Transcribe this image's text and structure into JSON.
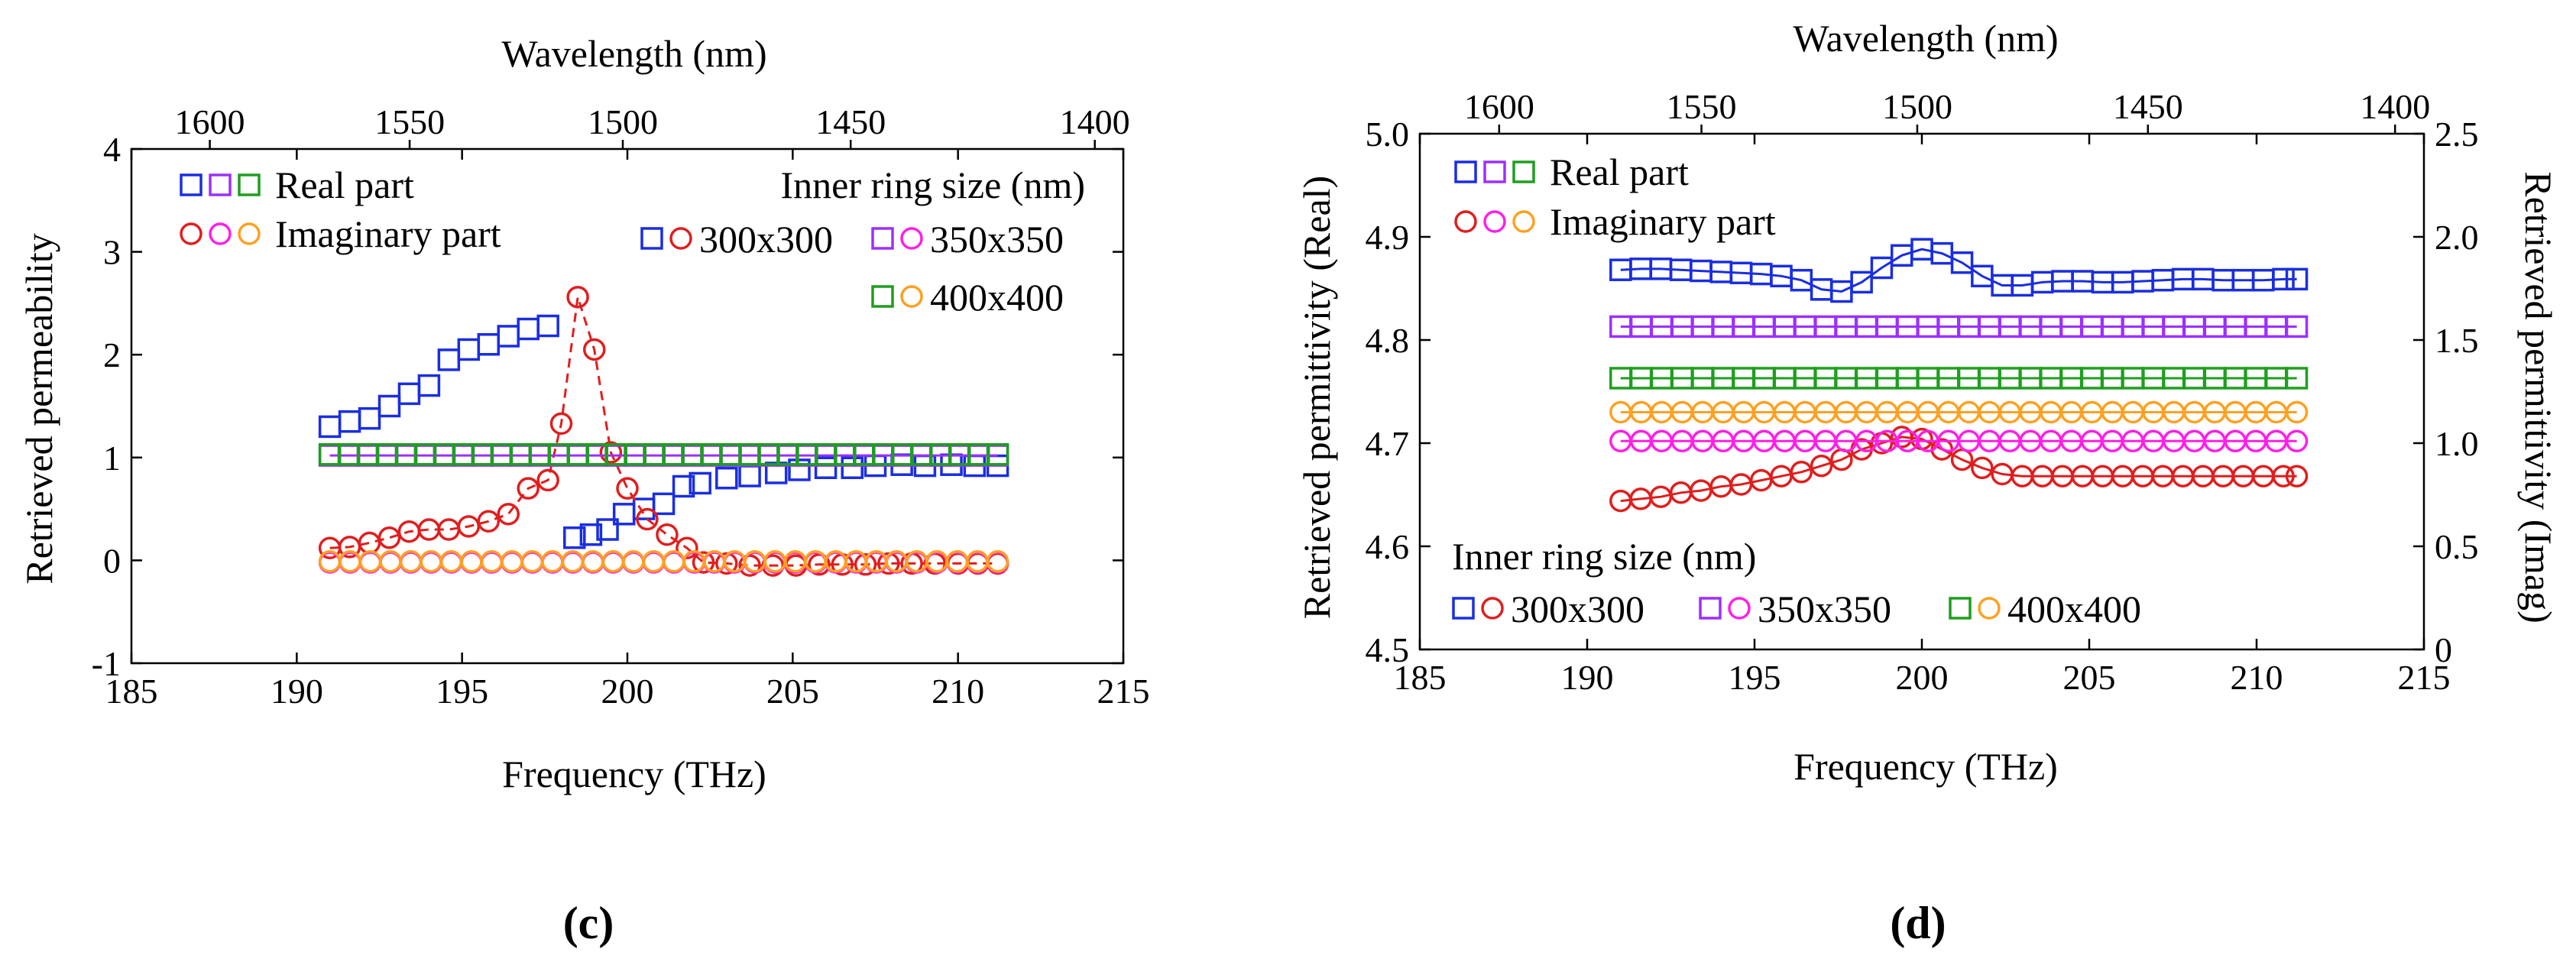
{
  "figure": {
    "colors": {
      "s300": "#1a2ee0",
      "s350": "#9b30ff",
      "s400": "#1f9e1f",
      "c300": "#e01e1e",
      "c350": "#ff1fe6",
      "c400": "#ffa020"
    }
  },
  "chart_data": [
    {
      "panel": "(c)",
      "type": "scatter",
      "xlabel": "Frequency (THz)",
      "ylabel": "Retrieved permeability",
      "x2label": "Wavelength (nm)",
      "xlim": [
        185,
        215
      ],
      "ylim": [
        -1,
        4
      ],
      "xticks": [
        "185",
        "190",
        "195",
        "200",
        "205",
        "210",
        "215"
      ],
      "yticks": [
        "-1",
        "0",
        "1",
        "2",
        "3",
        "4"
      ],
      "x2ticks": [
        "1600",
        "1550",
        "1500",
        "1450",
        "1400"
      ],
      "legend": {
        "real": "Real part",
        "imag": "Imaginary part",
        "size_title": "Inner ring size (nm)",
        "sizes": [
          "300x300",
          "350x350",
          "400x400"
        ]
      },
      "series": [
        {
          "name": "300x300 Real",
          "marker": "square",
          "color": "#1a2ee0",
          "x": [
            191.0,
            191.6,
            192.2,
            192.8,
            193.4,
            194.0,
            194.6,
            195.2,
            195.8,
            196.4,
            197.0,
            197.6,
            198.4,
            198.9,
            199.4,
            199.9,
            200.5,
            201.1,
            201.7,
            202.2,
            203.0,
            203.7,
            204.5,
            205.2,
            206.0,
            206.8,
            207.5,
            208.3,
            209.0,
            209.8,
            210.5,
            211.2
          ],
          "y": [
            1.3,
            1.35,
            1.38,
            1.5,
            1.62,
            1.7,
            1.95,
            2.05,
            2.1,
            2.18,
            2.25,
            2.28,
            0.22,
            0.25,
            0.3,
            0.45,
            0.5,
            0.55,
            0.72,
            0.75,
            0.8,
            0.82,
            0.85,
            0.88,
            0.9,
            0.9,
            0.92,
            0.93,
            0.92,
            0.93,
            0.92,
            0.92
          ]
        },
        {
          "name": "300x300 Imag",
          "marker": "circle",
          "color": "#e01e1e",
          "line": "dashed",
          "x": [
            191.0,
            191.6,
            192.2,
            192.8,
            193.4,
            194.0,
            194.6,
            195.2,
            195.8,
            196.4,
            197.0,
            197.6,
            198.0,
            198.5,
            199.0,
            199.5,
            200.0,
            200.6,
            201.2,
            201.8,
            202.3,
            203.0,
            203.7,
            204.4,
            205.1,
            205.8,
            206.5,
            207.2,
            207.9,
            208.6,
            209.3,
            210.0,
            210.6,
            211.2
          ],
          "y": [
            0.12,
            0.13,
            0.17,
            0.22,
            0.28,
            0.3,
            0.3,
            0.33,
            0.38,
            0.45,
            0.7,
            0.78,
            1.33,
            2.56,
            2.05,
            1.05,
            0.7,
            0.4,
            0.25,
            0.12,
            -0.02,
            -0.03,
            -0.05,
            -0.05,
            -0.05,
            -0.04,
            -0.04,
            -0.04,
            -0.03,
            -0.03,
            -0.03,
            -0.03,
            -0.03,
            -0.03
          ]
        },
        {
          "name": "350x350 Real",
          "marker": "square",
          "color": "#9b30ff",
          "line": "solid",
          "x_range": [
            191.0,
            211.2
          ],
          "n": 36,
          "y_const": 1.02
        },
        {
          "name": "350x350 Imag",
          "marker": "circle",
          "color": "#ff1fe6",
          "x_range": [
            191.0,
            211.2
          ],
          "n": 34,
          "y_const": -0.02
        },
        {
          "name": "400x400 Real",
          "marker": "square",
          "color": "#1f9e1f",
          "x_range": [
            191.0,
            211.2
          ],
          "n": 36,
          "y_const": 1.03
        },
        {
          "name": "400x400 Imag",
          "marker": "circle",
          "color": "#ffa020",
          "x_range": [
            191.0,
            211.2
          ],
          "n": 34,
          "y_const": -0.01
        }
      ]
    },
    {
      "panel": "(d)",
      "type": "scatter",
      "xlabel": "Frequency (THz)",
      "ylabel": "Retrieved permittivity (Real)",
      "y2label": "Retrieved permittivity (Imag)",
      "x2label": "Wavelength (nm)",
      "xlim": [
        185,
        215
      ],
      "ylim": [
        4.5,
        5.0
      ],
      "y2lim": [
        0,
        2.5
      ],
      "xticks": [
        "185",
        "190",
        "195",
        "200",
        "205",
        "210",
        "215"
      ],
      "yticks": [
        "4.5",
        "4.6",
        "4.7",
        "4.8",
        "4.9",
        "5.0"
      ],
      "y2ticks": [
        "0",
        "0.5",
        "1.0",
        "1.5",
        "2.0",
        "2.5"
      ],
      "x2ticks": [
        "1600",
        "1550",
        "1500",
        "1450",
        "1400"
      ],
      "legend": {
        "real": "Real part",
        "imag": "Imaginary part",
        "size_title": "Inner ring size (nm)",
        "sizes": [
          "300x300",
          "350x350",
          "400x400"
        ]
      },
      "series": [
        {
          "name": "300x300 Real",
          "marker": "square",
          "color": "#1a2ee0",
          "line": "solid",
          "x": [
            191.0,
            191.6,
            192.2,
            192.8,
            193.4,
            194.0,
            194.6,
            195.2,
            195.8,
            196.4,
            197.0,
            197.6,
            198.2,
            198.8,
            199.4,
            200.0,
            200.6,
            201.2,
            201.8,
            202.4,
            203.0,
            203.6,
            204.2,
            204.8,
            205.4,
            206.0,
            206.6,
            207.2,
            207.8,
            208.4,
            209.0,
            209.6,
            210.2,
            210.8,
            211.2
          ],
          "y": [
            4.868,
            4.869,
            4.869,
            4.868,
            4.867,
            4.866,
            4.865,
            4.864,
            4.862,
            4.858,
            4.849,
            4.847,
            4.856,
            4.87,
            4.882,
            4.888,
            4.884,
            4.875,
            4.862,
            4.853,
            4.853,
            4.856,
            4.857,
            4.857,
            4.856,
            4.856,
            4.857,
            4.858,
            4.859,
            4.859,
            4.858,
            4.858,
            4.858,
            4.859,
            4.859
          ]
        },
        {
          "name": "300x300 Imag",
          "marker": "circle",
          "color": "#e01e1e",
          "line": "solid",
          "axis": "y2",
          "x": [
            191.0,
            191.6,
            192.2,
            192.8,
            193.4,
            194.0,
            194.6,
            195.2,
            195.8,
            196.4,
            197.0,
            197.6,
            198.2,
            198.8,
            199.4,
            200.0,
            200.6,
            201.2,
            201.8,
            202.4,
            203.0,
            203.6,
            204.2,
            204.8,
            205.4,
            206.0,
            206.6,
            207.2,
            207.8,
            208.4,
            209.0,
            209.6,
            210.2,
            210.8,
            211.2
          ],
          "y": [
            0.72,
            0.73,
            0.74,
            0.76,
            0.77,
            0.79,
            0.8,
            0.82,
            0.84,
            0.86,
            0.89,
            0.92,
            0.97,
            1.0,
            1.03,
            1.02,
            0.97,
            0.92,
            0.88,
            0.85,
            0.84,
            0.84,
            0.84,
            0.84,
            0.84,
            0.84,
            0.84,
            0.84,
            0.84,
            0.84,
            0.84,
            0.84,
            0.84,
            0.84,
            0.84
          ]
        },
        {
          "name": "350x350 Real",
          "marker": "square",
          "color": "#9b30ff",
          "line": "solid",
          "x_range": [
            191.0,
            211.2
          ],
          "n": 34,
          "y_const": 4.813
        },
        {
          "name": "350x350 Imag",
          "marker": "circle",
          "color": "#ff1fe6",
          "line": "solid",
          "axis": "y2",
          "x_range": [
            191.0,
            211.2
          ],
          "n": 34,
          "y_const": 1.01
        },
        {
          "name": "400x400 Real",
          "marker": "square",
          "color": "#1f9e1f",
          "line": "solid",
          "x_range": [
            191.0,
            211.2
          ],
          "n": 34,
          "y_const": 4.763
        },
        {
          "name": "400x400 Imag",
          "marker": "circle",
          "color": "#ffa020",
          "line": "solid",
          "axis": "y2",
          "x_range": [
            191.0,
            211.2
          ],
          "n": 34,
          "y_const": 1.15
        }
      ]
    }
  ]
}
